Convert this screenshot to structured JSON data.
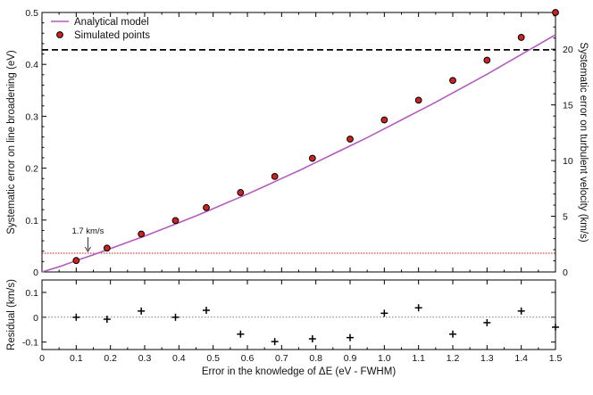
{
  "chart_data": [
    {
      "type": "line",
      "panel": "main",
      "xlim": [
        0,
        1.5
      ],
      "ylim": [
        0,
        0.5
      ],
      "y2lim": [
        0,
        23.3
      ],
      "xticks": [
        "0",
        "0.1",
        "0.2",
        "0.3",
        "0.4",
        "0.5",
        "0.6",
        "0.7",
        "0.8",
        "0.9",
        "1.0",
        "1.1",
        "1.2",
        "1.3",
        "1.4",
        "1.5"
      ],
      "yticks": [
        "0",
        "0.1",
        "0.2",
        "0.3",
        "0.4",
        "0.5"
      ],
      "y2ticks": [
        "0",
        "5",
        "10",
        "15",
        "20"
      ],
      "ylabel": "Systematic error on line broadening (eV)",
      "y2label": "Systematic error on turbulent velocity (km/s)",
      "legend": {
        "position": "top-left",
        "entries": [
          "Analytical model",
          "Simulated points"
        ]
      },
      "series": [
        {
          "name": "Analytical model",
          "kind": "line",
          "color": "#b35cbf",
          "x": [
            0,
            0.05,
            0.1,
            0.15,
            0.2,
            0.25,
            0.3,
            0.35,
            0.4,
            0.45,
            0.5,
            0.55,
            0.6,
            0.65,
            0.7,
            0.75,
            0.8,
            0.85,
            0.9,
            0.95,
            1.0,
            1.05,
            1.1,
            1.15,
            1.2,
            1.25,
            1.3,
            1.35,
            1.4,
            1.45,
            1.5
          ],
          "y": [
            0.0,
            0.01,
            0.022,
            0.033,
            0.045,
            0.057,
            0.069,
            0.082,
            0.095,
            0.108,
            0.122,
            0.136,
            0.15,
            0.165,
            0.18,
            0.195,
            0.211,
            0.227,
            0.243,
            0.259,
            0.276,
            0.293,
            0.31,
            0.327,
            0.345,
            0.363,
            0.381,
            0.4,
            0.419,
            0.438,
            0.457
          ]
        },
        {
          "name": "Simulated points",
          "kind": "scatter",
          "color": "#cc2222",
          "x": [
            0.1,
            0.19,
            0.29,
            0.39,
            0.48,
            0.58,
            0.68,
            0.79,
            0.9,
            1.0,
            1.1,
            1.2,
            1.3,
            1.4,
            1.5
          ],
          "y": [
            0.022,
            0.046,
            0.073,
            0.099,
            0.124,
            0.153,
            0.184,
            0.219,
            0.256,
            0.293,
            0.331,
            0.369,
            0.408,
            0.452,
            0.5
          ]
        }
      ],
      "hlines": [
        {
          "y": 0.428,
          "style": "dashed",
          "color": "#000000"
        },
        {
          "y": 0.036,
          "style": "dotted",
          "color": "#dd1111"
        }
      ],
      "annotations": [
        {
          "text": "1.7 km/s",
          "x": 0.155,
          "y": 0.036
        }
      ]
    },
    {
      "type": "scatter",
      "panel": "residual",
      "xlim": [
        0,
        1.5
      ],
      "ylim": [
        -0.13,
        0.15
      ],
      "xticks": [
        "0",
        "0.1",
        "0.2",
        "0.3",
        "0.4",
        "0.5",
        "0.6",
        "0.7",
        "0.8",
        "0.9",
        "1.0",
        "1.1",
        "1.2",
        "1.3",
        "1.4",
        "1.5"
      ],
      "yticks": [
        "-0.1",
        "0",
        "0.1"
      ],
      "xlabel": "Error in the knowledge of ΔE (eV - FWHM)",
      "ylabel": "Residual (km/s)",
      "zero_line": true,
      "series": [
        {
          "name": "",
          "x": [
            0.1,
            0.19,
            0.29,
            0.39,
            0.48,
            0.58,
            0.68,
            0.79,
            0.9,
            1.0,
            1.1,
            1.2,
            1.3,
            1.4,
            1.5
          ],
          "y": [
            0.0,
            -0.008,
            0.025,
            0.0,
            0.028,
            -0.068,
            -0.098,
            -0.087,
            -0.082,
            0.016,
            0.038,
            -0.068,
            -0.022,
            0.025,
            -0.04
          ]
        }
      ]
    }
  ]
}
